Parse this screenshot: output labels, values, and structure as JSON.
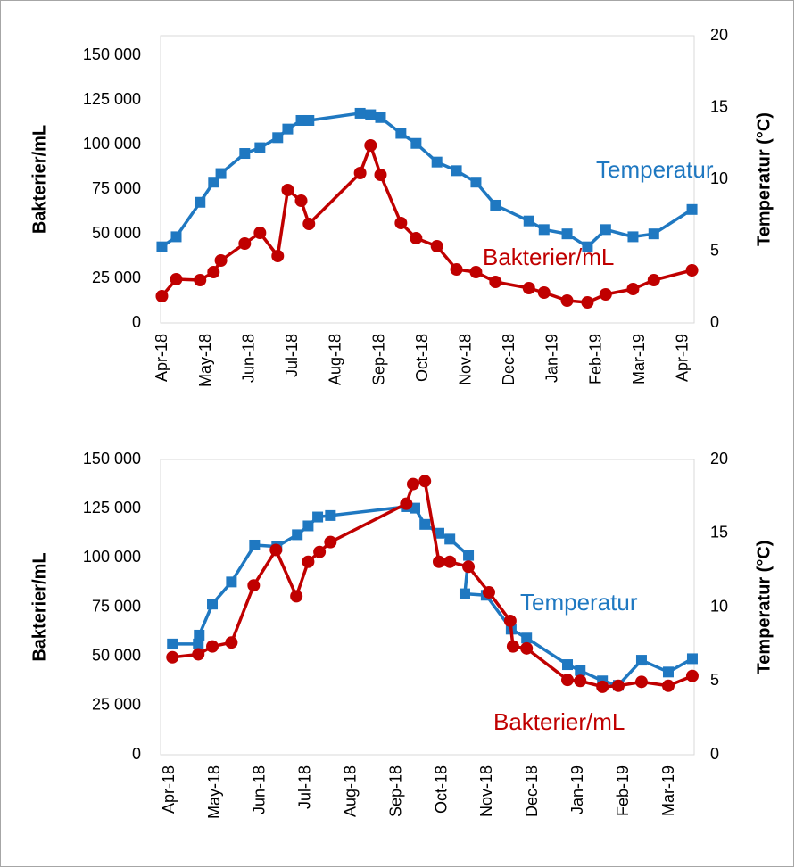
{
  "chart_data": [
    {
      "type": "line",
      "ylabel": "Bakterier/mL",
      "y2label": "Temperatur (°C)",
      "xlim": [
        -0.05,
        12.25
      ],
      "xticks": [
        {
          "value": 0,
          "label": "Apr-18"
        },
        {
          "value": 1,
          "label": "May-18"
        },
        {
          "value": 2,
          "label": "Jun-18"
        },
        {
          "value": 3,
          "label": "Jul-18"
        },
        {
          "value": 4,
          "label": "Aug-18"
        },
        {
          "value": 5,
          "label": "Sep-18"
        },
        {
          "value": 6,
          "label": "Oct-18"
        },
        {
          "value": 7,
          "label": "Nov-18"
        },
        {
          "value": 8,
          "label": "Dec-18"
        },
        {
          "value": 9,
          "label": "Jan-19"
        },
        {
          "value": 10,
          "label": "Feb-19"
        },
        {
          "value": 11,
          "label": "Mar-19"
        },
        {
          "value": 12,
          "label": "Apr-19"
        }
      ],
      "ylim": [
        0,
        161000
      ],
      "yticks": [
        0,
        {
          "value": 25000,
          "label": "25 000"
        },
        {
          "value": 50000,
          "label": "50 000"
        },
        {
          "value": 75000,
          "label": "75 000"
        },
        {
          "value": 100000,
          "label": "100 000"
        },
        {
          "value": 125000,
          "label": "125 000"
        },
        {
          "value": 150000,
          "label": "150 000"
        }
      ],
      "y2lim": [
        0,
        20
      ],
      "y2ticks": [
        0,
        5,
        10,
        15,
        20
      ],
      "x": [
        -0.02,
        0.31,
        0.86,
        1.17,
        1.34,
        1.89,
        2.24,
        2.65,
        2.88,
        3.19,
        3.37,
        4.55,
        4.79,
        5.02,
        5.49,
        5.84,
        6.32,
        6.77,
        7.22,
        7.67,
        8.44,
        8.79,
        9.32,
        9.79,
        10.21,
        10.84,
        11.32,
        12.2
      ],
      "series": [
        {
          "name": "Temperatur",
          "color": "#1f78c1",
          "marker": "square",
          "axis": "y2",
          "values": [
            5.3,
            6.0,
            8.4,
            9.8,
            10.4,
            11.8,
            12.2,
            12.9,
            13.5,
            14.1,
            14.1,
            14.6,
            14.5,
            14.3,
            13.2,
            12.5,
            11.2,
            10.6,
            9.8,
            8.2,
            7.1,
            6.5,
            6.2,
            5.3,
            6.5,
            6.0,
            6.2,
            7.9
          ]
        },
        {
          "name": "Bakterier/mL",
          "color": "#c00000",
          "marker": "circle",
          "axis": "y",
          "values": [
            15000,
            24500,
            24000,
            28500,
            35000,
            44500,
            50500,
            37500,
            74500,
            68500,
            55500,
            84000,
            99500,
            83000,
            56000,
            47500,
            43000,
            30000,
            28500,
            23000,
            19500,
            17000,
            12500,
            11500,
            16000,
            19000,
            24000,
            29500
          ]
        }
      ]
    },
    {
      "type": "line",
      "ylabel": "Bakterier/mL",
      "y2label": "Temperatur (°C)",
      "xlim": [
        -0.2,
        11.55
      ],
      "xticks": [
        {
          "value": 0,
          "label": "Apr-18"
        },
        {
          "value": 1,
          "label": "May-18"
        },
        {
          "value": 2,
          "label": "Jun-18"
        },
        {
          "value": 3,
          "label": "Jul-18"
        },
        {
          "value": 4,
          "label": "Aug-18"
        },
        {
          "value": 5,
          "label": "Sep-18"
        },
        {
          "value": 6,
          "label": "Oct-18"
        },
        {
          "value": 7,
          "label": "Nov-18"
        },
        {
          "value": 8,
          "label": "Dec-18"
        },
        {
          "value": 9,
          "label": "Jan-19"
        },
        {
          "value": 10,
          "label": "Feb-19"
        },
        {
          "value": 11,
          "label": "Mar-19"
        }
      ],
      "ylim": [
        0,
        150000
      ],
      "yticks": [
        0,
        {
          "value": 25000,
          "label": "25 000"
        },
        {
          "value": 50000,
          "label": "50 000"
        },
        {
          "value": 75000,
          "label": "75 000"
        },
        {
          "value": 100000,
          "label": "100 000"
        },
        {
          "value": 125000,
          "label": "125 000"
        },
        {
          "value": 150000,
          "label": "150 000"
        }
      ],
      "y2lim": [
        0,
        20
      ],
      "y2ticks": [
        0,
        5,
        10,
        15,
        20
      ],
      "series": [
        {
          "name": "Temperatur",
          "color": "#1f78c1",
          "marker": "square",
          "axis": "y2",
          "x": [
            0.06,
            0.63,
            0.65,
            0.94,
            1.36,
            1.87,
            2.36,
            2.81,
            3.05,
            3.26,
            3.54,
            5.21,
            5.4,
            5.62,
            5.93,
            6.17,
            6.58,
            6.5,
            6.97,
            7.52,
            7.86,
            8.76,
            9.04,
            9.53,
            9.88,
            10.39,
            10.98,
            11.51
          ],
          "values": [
            7.5,
            7.5,
            8.1,
            10.2,
            11.7,
            14.2,
            14.1,
            14.9,
            15.5,
            16.1,
            16.2,
            16.8,
            16.7,
            15.6,
            15.0,
            14.6,
            13.5,
            10.9,
            10.8,
            8.5,
            7.9,
            6.1,
            5.7,
            5.0,
            4.7,
            6.4,
            5.6,
            6.5
          ]
        },
        {
          "name": "Bakterier/mL",
          "color": "#c00000",
          "marker": "circle",
          "axis": "y",
          "x": [
            0.06,
            0.63,
            0.94,
            1.36,
            1.85,
            2.34,
            2.79,
            3.05,
            3.3,
            3.54,
            5.21,
            5.36,
            5.62,
            5.93,
            6.17,
            6.58,
            7.03,
            7.5,
            7.56,
            7.86,
            8.76,
            9.04,
            9.53,
            9.88,
            10.39,
            10.98,
            11.51
          ],
          "values": [
            49500,
            51000,
            55000,
            57000,
            86000,
            104000,
            80500,
            98000,
            103000,
            108000,
            127500,
            137500,
            139000,
            98000,
            98000,
            95500,
            82500,
            68000,
            55000,
            54000,
            38000,
            37500,
            34500,
            35000,
            37000,
            35000,
            40000
          ]
        }
      ]
    }
  ]
}
